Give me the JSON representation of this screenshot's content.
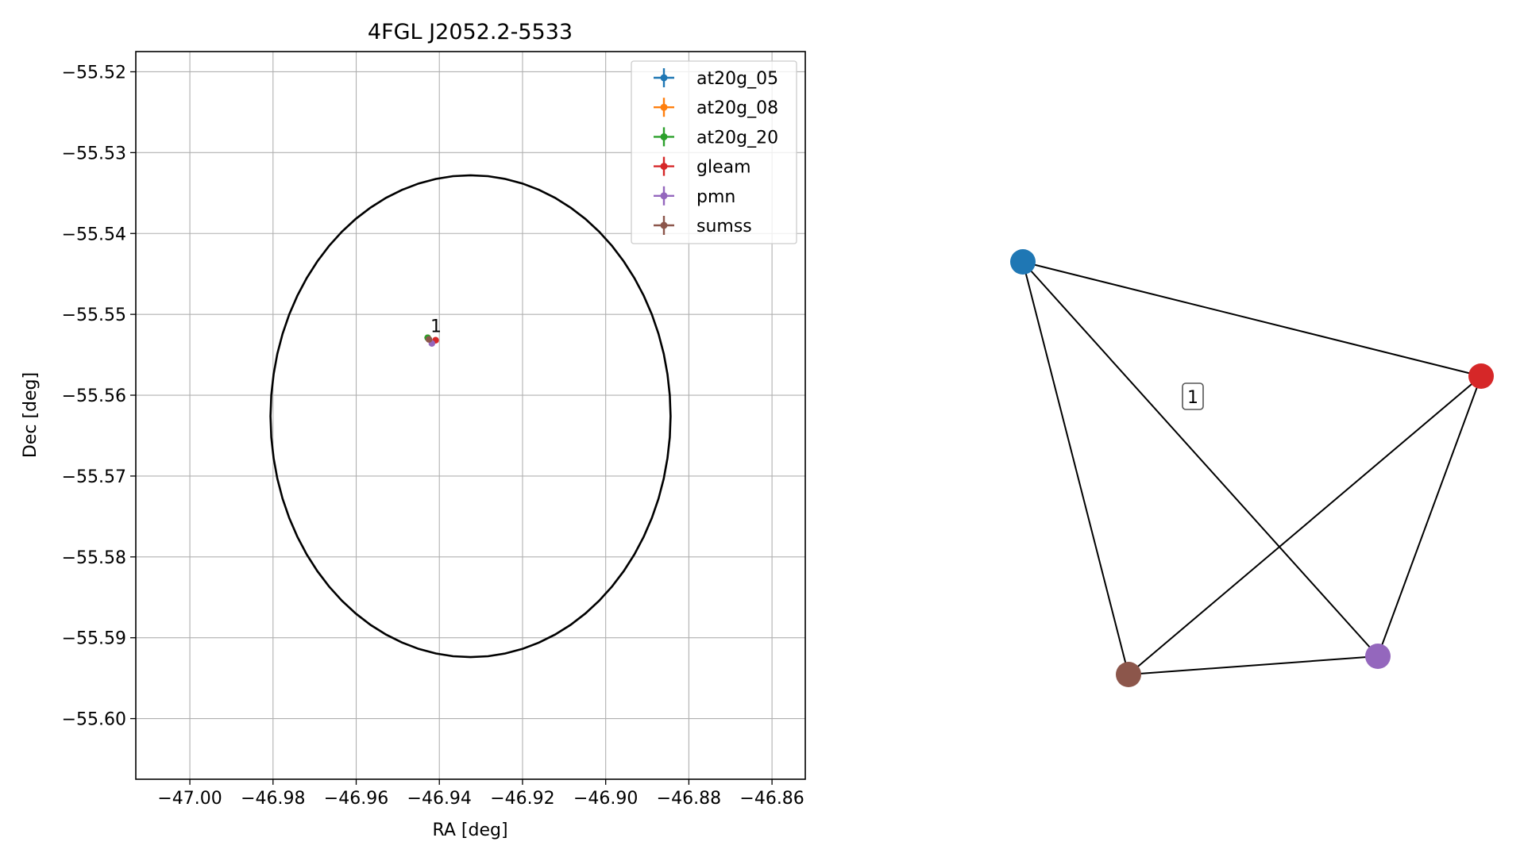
{
  "chart_data": [
    {
      "type": "scatter",
      "title": "4FGL J2052.2-5533",
      "xlabel": "RA [deg]",
      "ylabel": "Dec [deg]",
      "xlim": [
        -47.013,
        -46.852
      ],
      "ylim": [
        -55.6075,
        -55.5175
      ],
      "xticks": [
        -47.0,
        -46.98,
        -46.96,
        -46.94,
        -46.92,
        -46.9,
        -46.88,
        -46.86
      ],
      "xtick_labels": [
        "−47.00",
        "−46.98",
        "−46.96",
        "−46.94",
        "−46.92",
        "−46.90",
        "−46.88",
        "−46.86"
      ],
      "yticks": [
        -55.52,
        -55.53,
        -55.54,
        -55.55,
        -55.56,
        -55.57,
        -55.58,
        -55.59,
        -55.6
      ],
      "ytick_labels": [
        "−55.52",
        "−55.53",
        "−55.54",
        "−55.55",
        "−55.56",
        "−55.57",
        "−55.58",
        "−55.59",
        "−55.60"
      ],
      "grid": true,
      "legend_position": "top-right",
      "series": [
        {
          "name": "at20g_05",
          "color": "#1f77b4",
          "points": [
            [
              -46.9428,
              -55.5529
            ]
          ]
        },
        {
          "name": "at20g_08",
          "color": "#ff7f0e",
          "points": [
            [
              -46.9428,
              -55.5529
            ]
          ]
        },
        {
          "name": "at20g_20",
          "color": "#2ca02c",
          "points": [
            [
              -46.9428,
              -55.5529
            ]
          ]
        },
        {
          "name": "gleam",
          "color": "#d62728",
          "points": [
            [
              -46.9409,
              -55.5532
            ]
          ]
        },
        {
          "name": "pmn",
          "color": "#9467bd",
          "points": [
            [
              -46.9418,
              -55.5536
            ]
          ]
        },
        {
          "name": "sumss",
          "color": "#8c564b",
          "points": [
            [
              -46.9425,
              -55.5531
            ]
          ]
        }
      ],
      "ellipse": {
        "center": [
          -46.9325,
          -55.5626
        ],
        "ra_semi_axis": 0.0481,
        "dec_semi_axis": 0.0298,
        "color": "#000000"
      },
      "annotations": [
        {
          "text": "1",
          "x": -46.941,
          "y": -55.5515
        }
      ]
    },
    {
      "type": "network",
      "nodes": [
        {
          "id": "at20g",
          "color": "#1f77b4"
        },
        {
          "id": "gleam",
          "color": "#d62728"
        },
        {
          "id": "pmn",
          "color": "#9467bd"
        },
        {
          "id": "sumss",
          "color": "#8c564b"
        }
      ],
      "edges": [
        [
          "at20g",
          "gleam"
        ],
        [
          "at20g",
          "pmn"
        ],
        [
          "at20g",
          "sumss"
        ],
        [
          "gleam",
          "pmn"
        ],
        [
          "gleam",
          "sumss"
        ],
        [
          "pmn",
          "sumss"
        ]
      ],
      "cluster_label": "1"
    }
  ]
}
